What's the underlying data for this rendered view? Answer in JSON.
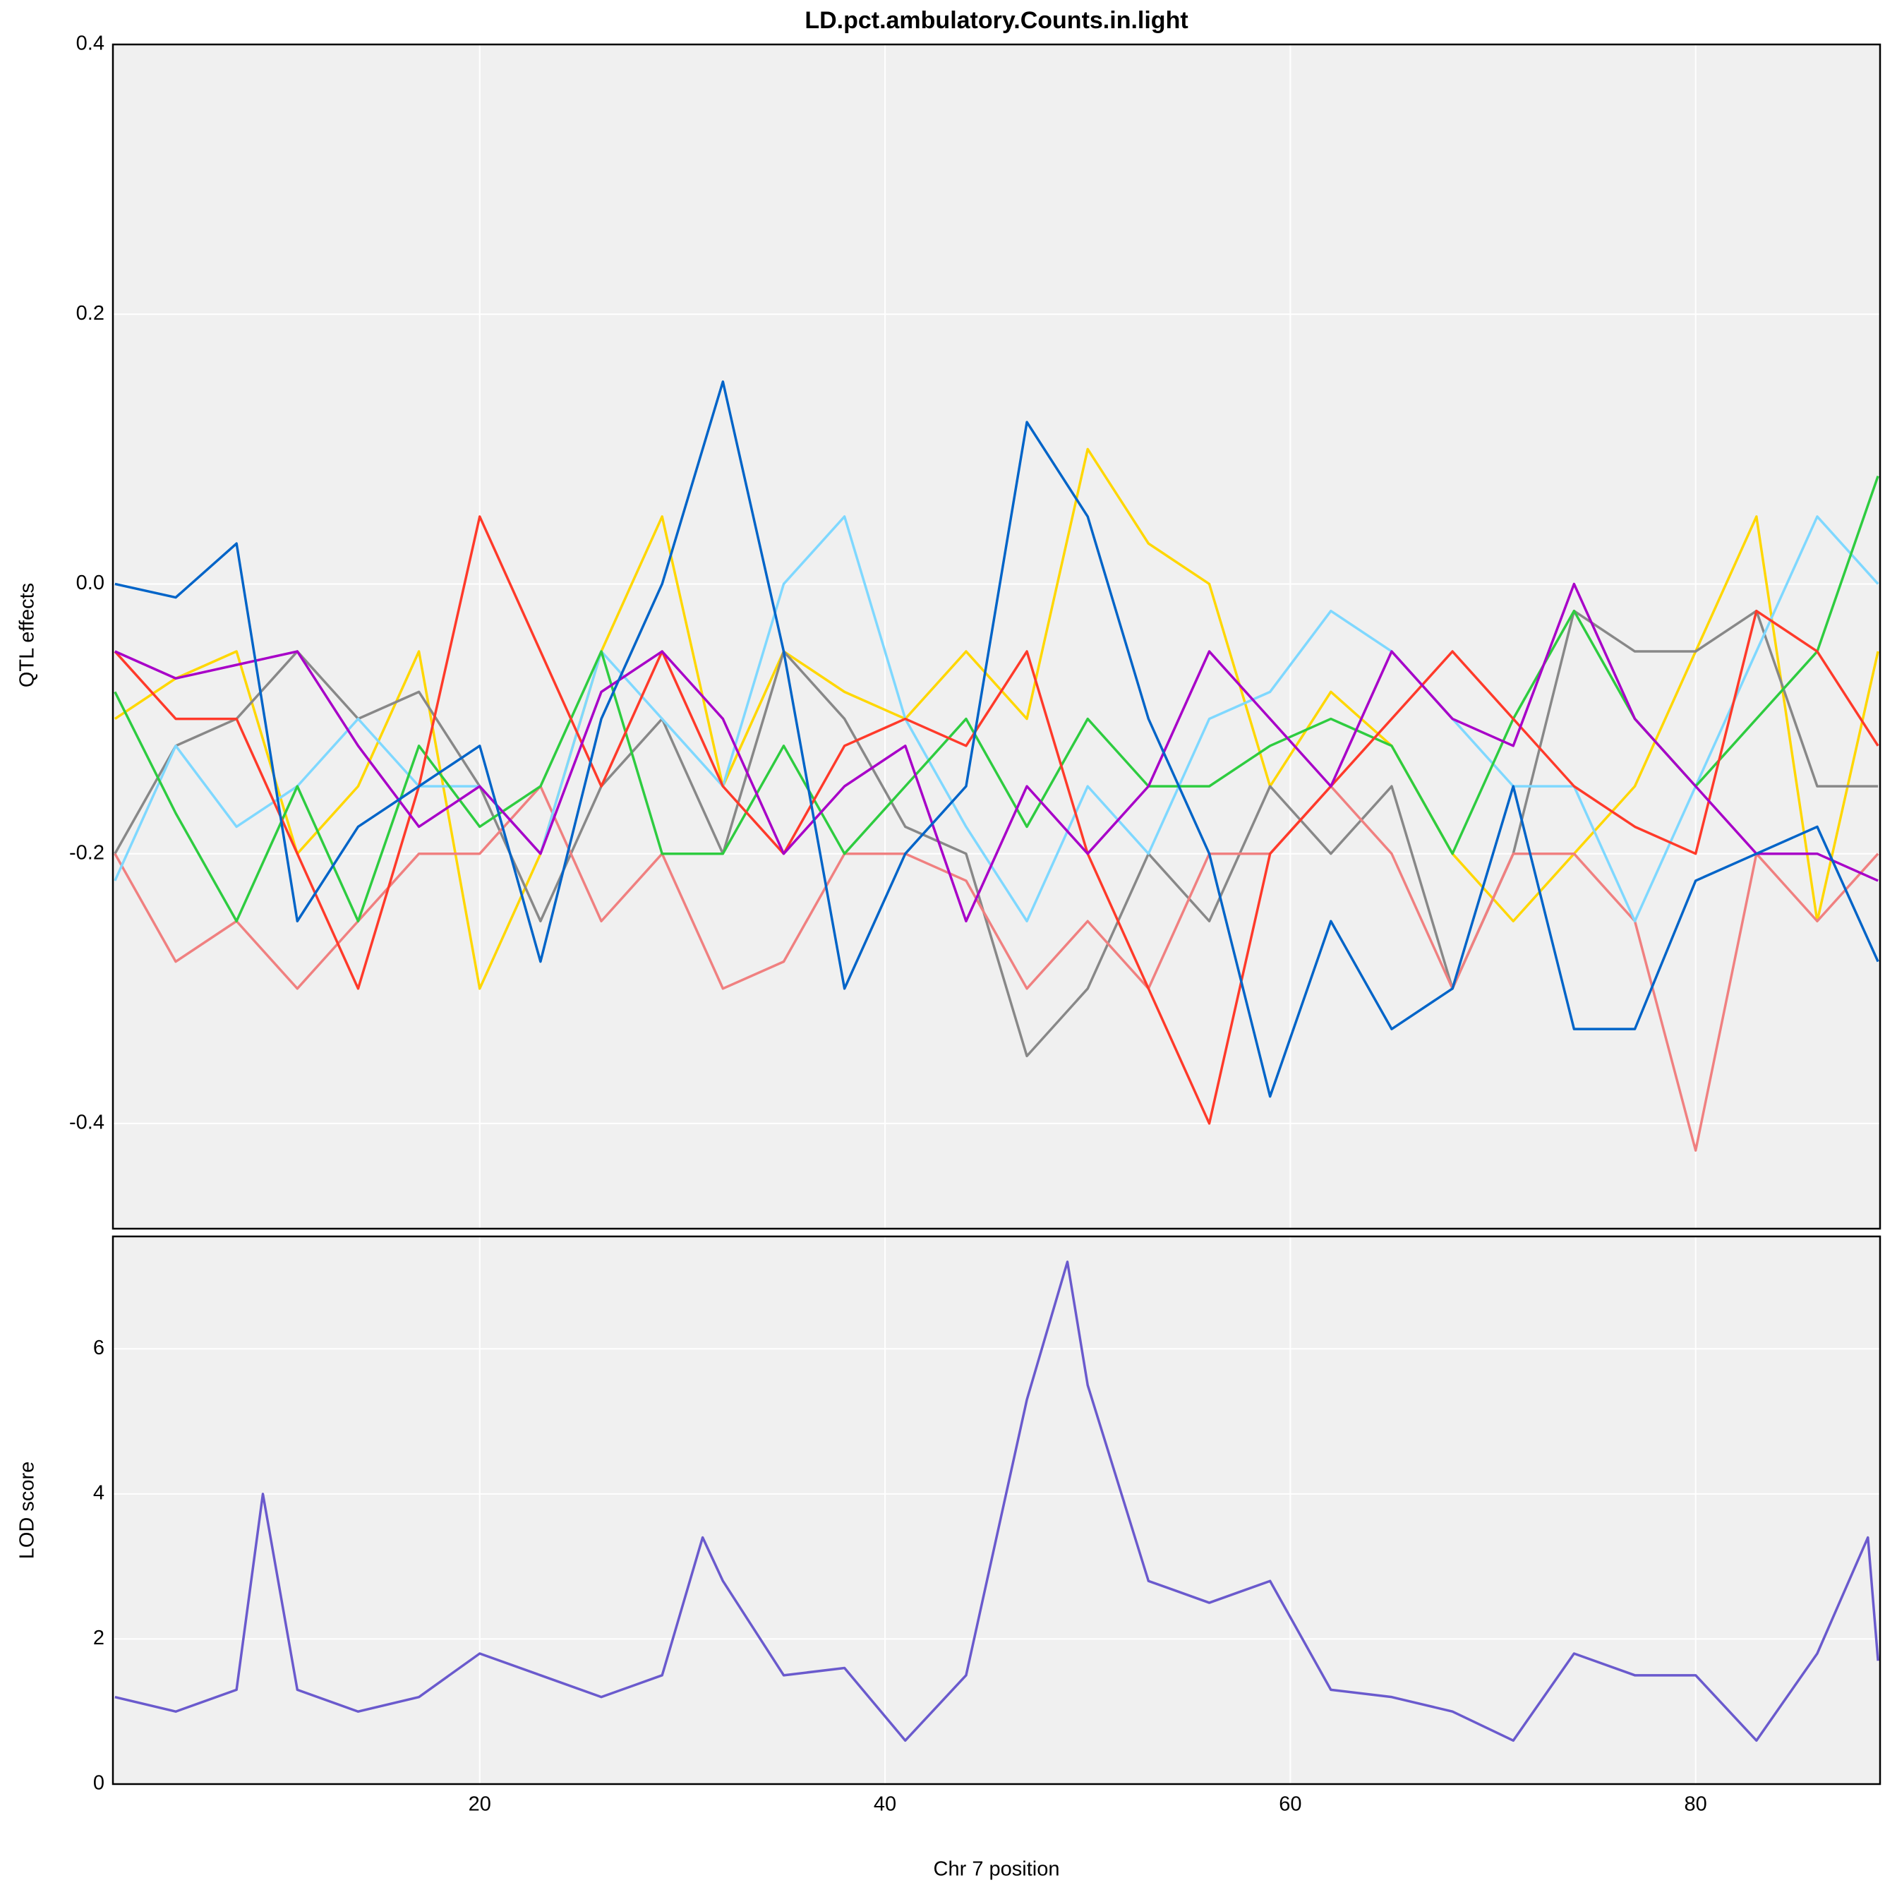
{
  "chart_data": [
    {
      "type": "line",
      "title": "LD.pct.ambulatory.Counts.in.light",
      "ylabel": "QTL effects",
      "x": [
        2,
        5,
        8,
        11,
        14,
        17,
        20,
        23,
        26,
        29,
        32,
        35,
        38,
        41,
        44,
        47,
        50,
        53,
        56,
        59,
        62,
        65,
        68,
        71,
        74,
        77,
        80,
        83,
        86,
        89
      ],
      "xlim": [
        1.9,
        89.1
      ],
      "xticks": [
        20,
        40,
        60,
        80
      ],
      "ylim": [
        -0.478,
        0.4
      ],
      "yticks": [
        0.4,
        0.2,
        {
          "value": 0,
          "label": "0.0"
        },
        -0.2,
        -0.4
      ],
      "grid": true,
      "series": [
        {
          "color": "#FFD700",
          "values": [
            -0.1,
            -0.07,
            -0.05,
            -0.2,
            -0.15,
            -0.05,
            -0.3,
            -0.2,
            -0.05,
            0.05,
            -0.15,
            -0.05,
            -0.08,
            -0.1,
            -0.05,
            -0.1,
            0.1,
            0.03,
            0,
            -0.15,
            -0.08,
            -0.12,
            -0.2,
            -0.25,
            -0.2,
            -0.15,
            -0.05,
            0.05,
            -0.25,
            -0.05
          ]
        },
        {
          "color": "#888888",
          "values": [
            -0.2,
            -0.12,
            -0.1,
            -0.05,
            -0.1,
            -0.08,
            -0.15,
            -0.25,
            -0.15,
            -0.1,
            -0.2,
            -0.05,
            -0.1,
            -0.18,
            -0.2,
            -0.35,
            -0.3,
            -0.2,
            -0.25,
            -0.15,
            -0.2,
            -0.15,
            -0.3,
            -0.2,
            -0.02,
            -0.05,
            -0.05,
            -0.02,
            -0.15,
            -0.15
          ]
        },
        {
          "color": "#F08080",
          "values": [
            -0.2,
            -0.28,
            -0.25,
            -0.3,
            -0.25,
            -0.2,
            -0.2,
            -0.15,
            -0.25,
            -0.2,
            -0.3,
            -0.28,
            -0.2,
            -0.2,
            -0.22,
            -0.3,
            -0.25,
            -0.3,
            -0.2,
            -0.2,
            -0.15,
            -0.2,
            -0.3,
            -0.2,
            -0.2,
            -0.25,
            -0.42,
            -0.2,
            -0.25,
            -0.2
          ]
        },
        {
          "color": "#7FD8FF",
          "values": [
            -0.22,
            -0.12,
            -0.18,
            -0.15,
            -0.1,
            -0.15,
            -0.15,
            -0.2,
            -0.05,
            -0.1,
            -0.15,
            0,
            0.05,
            -0.1,
            -0.18,
            -0.25,
            -0.15,
            -0.2,
            -0.1,
            -0.08,
            -0.02,
            -0.05,
            -0.1,
            -0.15,
            -0.15,
            -0.25,
            -0.15,
            -0.05,
            0.05,
            0
          ]
        },
        {
          "color": "#2ECC40",
          "values": [
            -0.08,
            -0.17,
            -0.25,
            -0.15,
            -0.25,
            -0.12,
            -0.18,
            -0.15,
            -0.05,
            -0.2,
            -0.2,
            -0.12,
            -0.2,
            -0.15,
            -0.1,
            -0.18,
            -0.1,
            -0.15,
            -0.15,
            -0.12,
            -0.1,
            -0.12,
            -0.2,
            -0.1,
            -0.02,
            -0.1,
            -0.15,
            -0.1,
            -0.05,
            0.08
          ]
        },
        {
          "color": "#FF3A2A",
          "values": [
            -0.05,
            -0.1,
            -0.1,
            -0.2,
            -0.3,
            -0.15,
            0.05,
            -0.05,
            -0.15,
            -0.05,
            -0.15,
            -0.2,
            -0.12,
            -0.1,
            -0.12,
            -0.05,
            -0.2,
            -0.3,
            -0.4,
            -0.2,
            -0.15,
            -0.1,
            -0.05,
            -0.1,
            -0.15,
            -0.18,
            -0.2,
            -0.02,
            -0.05,
            -0.12
          ]
        },
        {
          "color": "#A800C8",
          "values": [
            -0.05,
            -0.07,
            -0.06,
            -0.05,
            -0.12,
            -0.18,
            -0.15,
            -0.2,
            -0.08,
            -0.05,
            -0.1,
            -0.2,
            -0.15,
            -0.12,
            -0.25,
            -0.15,
            -0.2,
            -0.15,
            -0.05,
            -0.1,
            -0.15,
            -0.05,
            -0.1,
            -0.12,
            0,
            -0.1,
            -0.15,
            -0.2,
            -0.2,
            -0.22
          ]
        },
        {
          "color": "#0064C8",
          "values": [
            0,
            -0.01,
            0.03,
            -0.25,
            -0.18,
            -0.15,
            -0.12,
            -0.28,
            -0.1,
            0,
            0.15,
            -0.05,
            -0.3,
            -0.2,
            -0.15,
            0.12,
            0.05,
            -0.1,
            -0.2,
            -0.38,
            -0.25,
            -0.33,
            -0.3,
            -0.15,
            -0.33,
            -0.33,
            -0.22,
            -0.2,
            -0.18,
            -0.28
          ]
        }
      ]
    },
    {
      "type": "line",
      "xlabel": "Chr 7 position",
      "ylabel": "LOD score",
      "x": [
        2,
        5,
        8,
        9.3,
        11,
        14,
        17,
        20,
        23,
        26,
        29,
        31,
        32,
        35,
        38,
        41,
        44,
        47,
        49,
        50,
        53,
        56,
        59,
        62,
        65,
        68,
        71,
        74,
        77,
        80,
        83,
        86,
        88.5,
        89
      ],
      "xlim": [
        1.9,
        89.1
      ],
      "xticks": [
        20,
        40,
        60,
        80
      ],
      "ylim": [
        0,
        7.55
      ],
      "yticks": [
        0,
        2,
        4,
        6
      ],
      "grid": true,
      "series": [
        {
          "color": "#6A5ACD",
          "values": [
            1.2,
            1.0,
            1.3,
            4.0,
            1.3,
            1.0,
            1.2,
            1.8,
            1.5,
            1.2,
            1.5,
            3.4,
            2.8,
            1.5,
            1.6,
            0.6,
            1.5,
            5.3,
            7.2,
            5.5,
            2.8,
            2.5,
            2.8,
            1.3,
            1.2,
            1.0,
            0.6,
            1.8,
            1.5,
            1.5,
            0.6,
            1.8,
            3.4,
            1.7
          ]
        }
      ]
    }
  ]
}
